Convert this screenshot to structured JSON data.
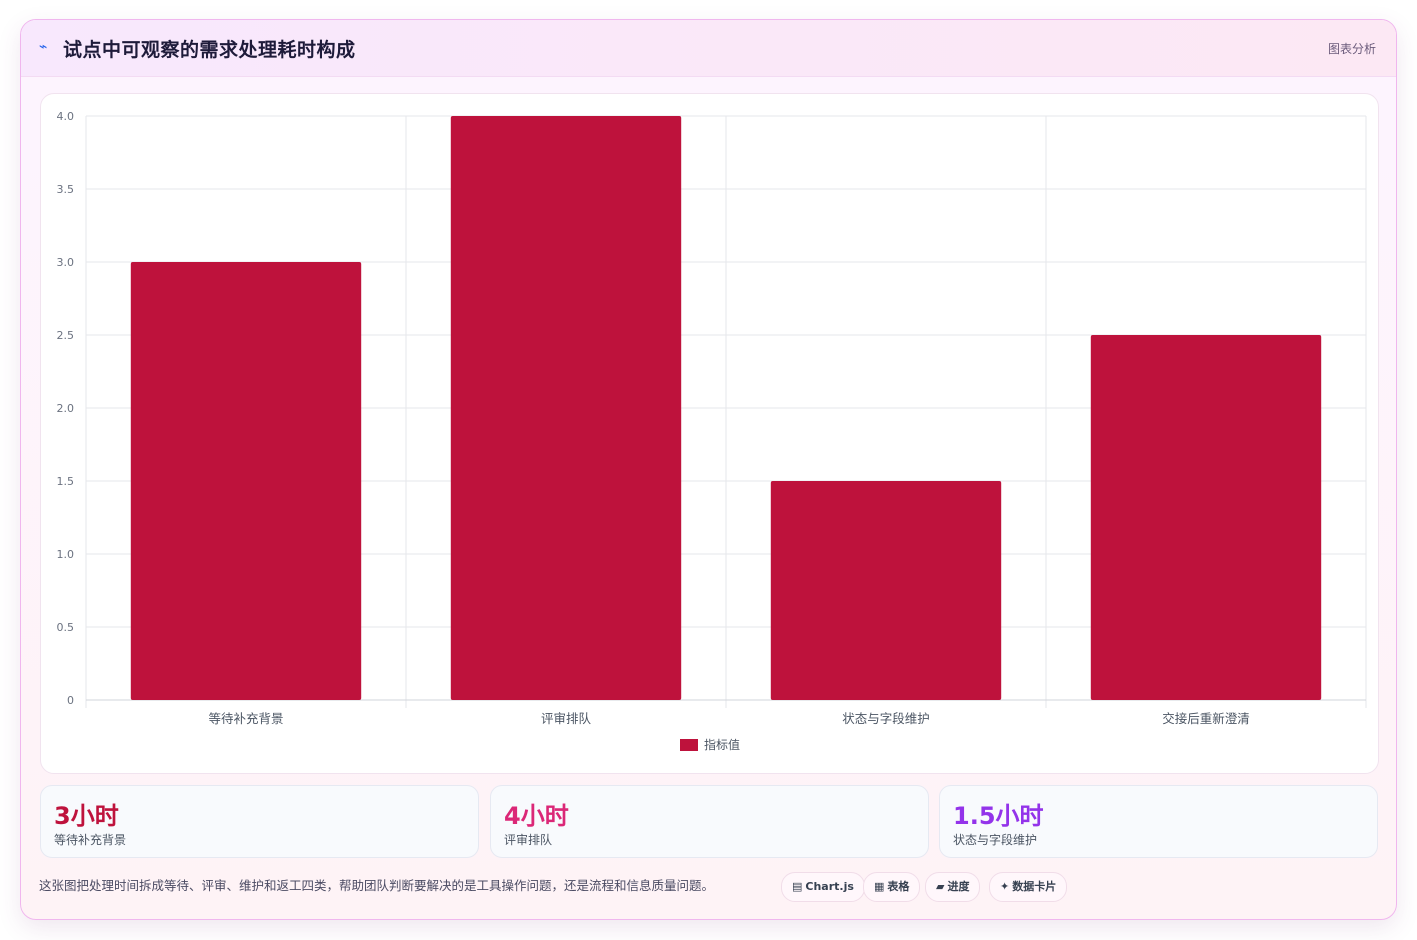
{
  "header": {
    "icon": "chart-icon",
    "title": "试点中可观察的需求处理耗时构成",
    "badge": "图表分析"
  },
  "colors": {
    "bar": "#be123c",
    "accent_1": "#be123c",
    "accent_2": "#db2777",
    "accent_3": "#9333ea"
  },
  "chart_data": {
    "type": "bar",
    "categories": [
      "等待补充背景",
      "评审排队",
      "状态与字段维护",
      "交接后重新澄清"
    ],
    "series": [
      {
        "name": "指标值",
        "values": [
          3,
          4,
          1.5,
          2.5
        ]
      }
    ],
    "ylim": [
      0,
      4
    ],
    "yticks": [
      "0",
      "0.5",
      "1.0",
      "1.5",
      "2.0",
      "2.5",
      "3.0",
      "3.5",
      "4.0"
    ],
    "grid": true,
    "legend": "bottom"
  },
  "stats": [
    {
      "value": "3小时",
      "label": "等待补充背景",
      "color": "#be123c"
    },
    {
      "value": "4小时",
      "label": "评审排队",
      "color": "#db2777"
    },
    {
      "value": "1.5小时",
      "label": "状态与字段维护",
      "color": "#9333ea"
    }
  ],
  "caption": "这张图把处理时间拆成等待、评审、维护和返工四类，帮助团队判断要解决的是工具操作问题，还是流程和信息质量问题。",
  "chips": [
    {
      "icon": "▤",
      "icon_name": "chart-icon",
      "label": "Chart.js"
    },
    {
      "icon": "▦",
      "icon_name": "table-icon",
      "label": "表格"
    },
    {
      "icon": "▰",
      "icon_name": "progress-icon",
      "label": "进度"
    },
    {
      "icon": "✦",
      "icon_name": "sparkle-icon",
      "label": "数据卡片"
    }
  ]
}
